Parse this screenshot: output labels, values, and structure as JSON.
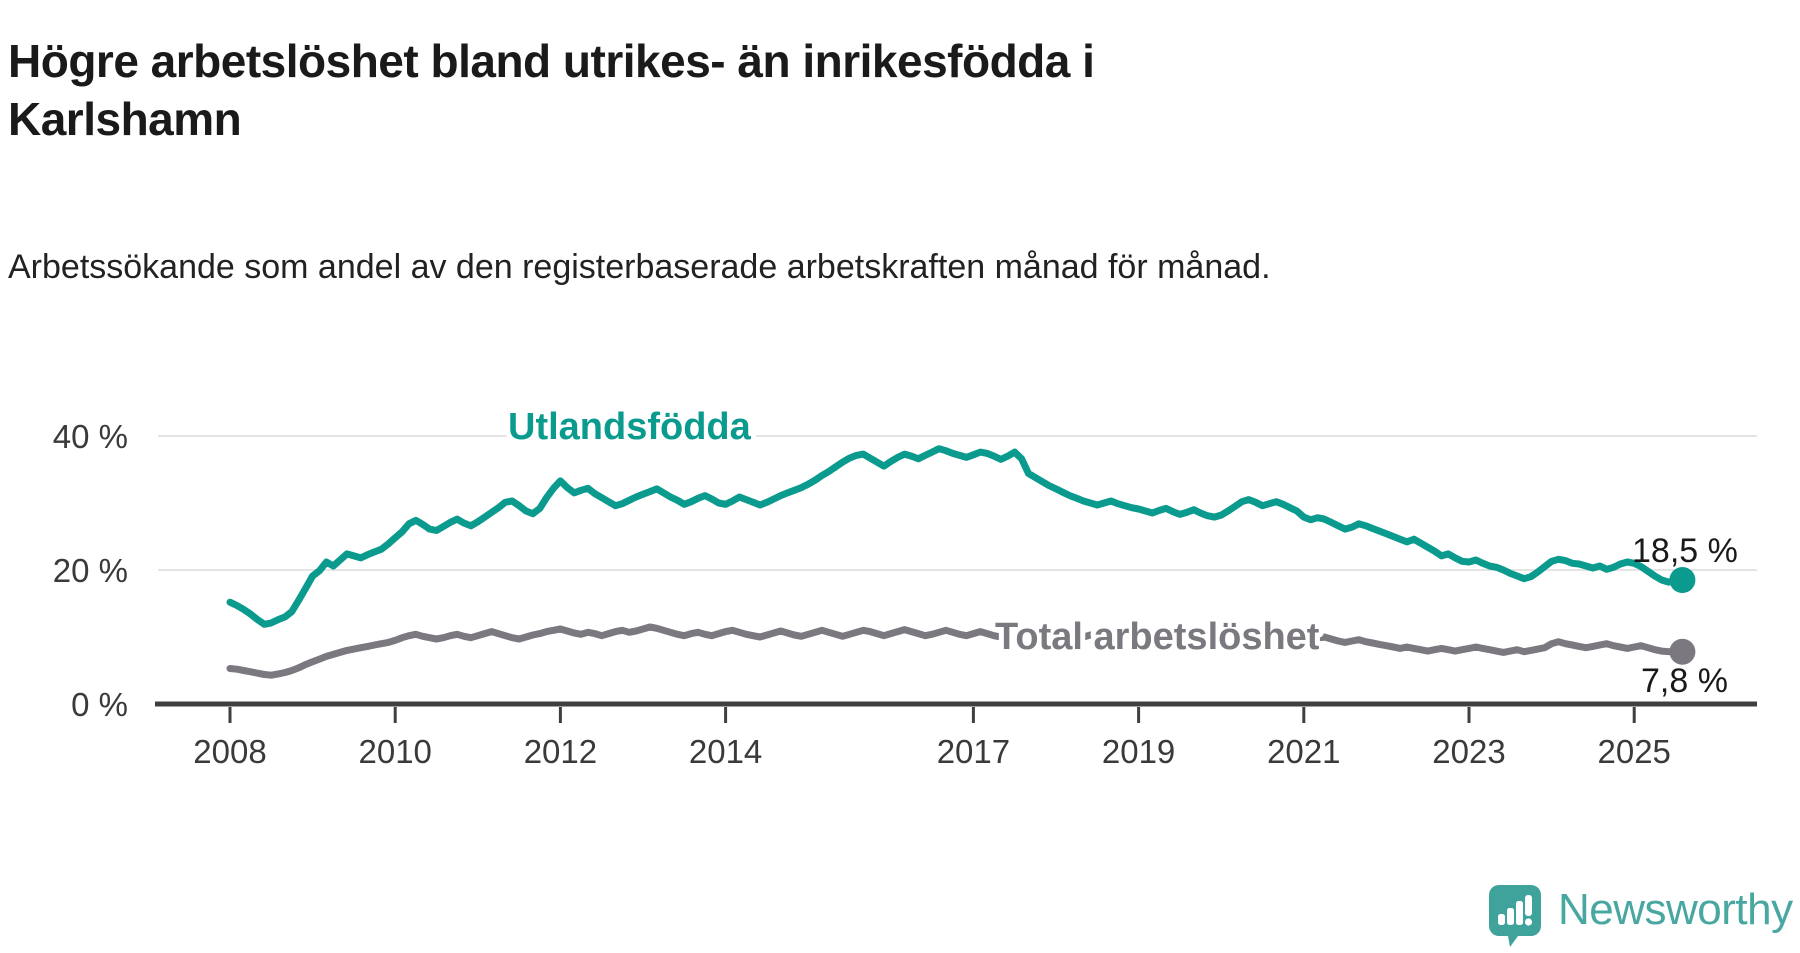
{
  "header": {
    "title": "Högre arbetslöshet bland utrikes- än inrikesfödda i Karlshamn",
    "subtitle": "Arbetssökande som andel av den registerbaserade arbetskraften månad för månad."
  },
  "colors": {
    "accent_teal": "#0b9b8e",
    "neutral_gray": "#7b7880",
    "grid": "#e4e4e4",
    "axis": "#3f3f3f",
    "axis_text": "#3a3a3a",
    "logo_teal": "#3fa39c",
    "brand_text_teal": "#48a7a0"
  },
  "chart_data": {
    "type": "line",
    "title": "Högre arbetslöshet bland utrikes- än inrikesfödda i Karlshamn",
    "subtitle": "Arbetssökande som andel av den registerbaserade arbetskraften månad för månad.",
    "x_unit": "month",
    "x_start": "2008-01",
    "x_end": "2025-08",
    "grid": "horizontal",
    "legend_position": "inline-labels",
    "ylim": [
      0,
      42
    ],
    "yticks": [
      {
        "value": 0,
        "label": "0 %"
      },
      {
        "value": 20,
        "label": "20 %"
      },
      {
        "value": 40,
        "label": "40 %"
      }
    ],
    "xticks": [
      {
        "year": 2008,
        "label": "2008"
      },
      {
        "year": 2010,
        "label": "2010"
      },
      {
        "year": 2012,
        "label": "2012"
      },
      {
        "year": 2014,
        "label": "2014"
      },
      {
        "year": 2017,
        "label": "2017"
      },
      {
        "year": 2019,
        "label": "2019"
      },
      {
        "year": 2021,
        "label": "2021"
      },
      {
        "year": 2023,
        "label": "2023"
      },
      {
        "year": 2025,
        "label": "2025"
      }
    ],
    "series": [
      {
        "name": "Utlandsfödda",
        "color": "#0b9b8e",
        "end_label": "18,5 %",
        "end_value": 18.5,
        "values": [
          15.2,
          14.7,
          14.1,
          13.4,
          12.6,
          11.9,
          12.1,
          12.6,
          13.0,
          13.8,
          15.5,
          17.3,
          19.1,
          19.9,
          21.2,
          20.6,
          21.5,
          22.4,
          22.1,
          21.8,
          22.3,
          22.7,
          23.1,
          23.9,
          24.8,
          25.7,
          26.9,
          27.4,
          26.8,
          26.1,
          25.9,
          26.5,
          27.1,
          27.6,
          27.0,
          26.6,
          27.2,
          27.9,
          28.6,
          29.3,
          30.1,
          30.3,
          29.6,
          28.8,
          28.4,
          29.2,
          30.8,
          32.2,
          33.3,
          32.3,
          31.5,
          31.9,
          32.2,
          31.4,
          30.8,
          30.2,
          29.6,
          29.9,
          30.4,
          30.9,
          31.3,
          31.7,
          32.1,
          31.5,
          30.9,
          30.4,
          29.8,
          30.2,
          30.7,
          31.1,
          30.6,
          30.0,
          29.8,
          30.3,
          30.9,
          30.5,
          30.1,
          29.7,
          30.1,
          30.6,
          31.1,
          31.5,
          31.9,
          32.3,
          32.8,
          33.4,
          34.1,
          34.7,
          35.4,
          36.1,
          36.7,
          37.1,
          37.3,
          36.7,
          36.1,
          35.5,
          36.2,
          36.8,
          37.3,
          37.0,
          36.6,
          37.1,
          37.6,
          38.1,
          37.8,
          37.4,
          37.1,
          36.8,
          37.2,
          37.6,
          37.4,
          37.0,
          36.5,
          37.0,
          37.6,
          36.6,
          34.4,
          33.8,
          33.2,
          32.6,
          32.1,
          31.6,
          31.1,
          30.7,
          30.3,
          30.0,
          29.7,
          30.0,
          30.3,
          29.9,
          29.6,
          29.3,
          29.1,
          28.8,
          28.5,
          28.9,
          29.2,
          28.7,
          28.3,
          28.6,
          29.0,
          28.5,
          28.1,
          27.9,
          28.2,
          28.8,
          29.5,
          30.2,
          30.5,
          30.1,
          29.6,
          29.9,
          30.2,
          29.8,
          29.3,
          28.8,
          27.9,
          27.5,
          27.8,
          27.6,
          27.1,
          26.6,
          26.1,
          26.4,
          26.9,
          26.6,
          26.2,
          25.8,
          25.4,
          25.0,
          24.6,
          24.2,
          24.6,
          24.0,
          23.4,
          22.8,
          22.1,
          22.4,
          21.8,
          21.3,
          21.2,
          21.5,
          21.0,
          20.6,
          20.4,
          20.0,
          19.5,
          19.1,
          18.7,
          19.0,
          19.7,
          20.5,
          21.3,
          21.6,
          21.4,
          21.0,
          20.9,
          20.6,
          20.3,
          20.6,
          20.1,
          20.4,
          20.9,
          21.2,
          21.0,
          20.5,
          19.8,
          19.1,
          18.5,
          18.2,
          18.4,
          18.5
        ]
      },
      {
        "name": "Total arbetslöshet",
        "color": "#7b7880",
        "end_label": "7,8 %",
        "end_value": 7.8,
        "values": [
          5.3,
          5.2,
          5.0,
          4.8,
          4.6,
          4.4,
          4.3,
          4.5,
          4.7,
          5.0,
          5.4,
          5.9,
          6.3,
          6.7,
          7.1,
          7.4,
          7.7,
          8.0,
          8.2,
          8.4,
          8.6,
          8.8,
          9.0,
          9.2,
          9.5,
          9.9,
          10.2,
          10.4,
          10.1,
          9.9,
          9.7,
          9.9,
          10.2,
          10.4,
          10.1,
          9.9,
          10.2,
          10.5,
          10.8,
          10.5,
          10.2,
          9.9,
          9.7,
          10.0,
          10.3,
          10.5,
          10.8,
          11.0,
          11.2,
          10.9,
          10.6,
          10.4,
          10.7,
          10.5,
          10.2,
          10.5,
          10.8,
          11.0,
          10.7,
          10.9,
          11.2,
          11.5,
          11.3,
          11.0,
          10.7,
          10.4,
          10.2,
          10.5,
          10.7,
          10.4,
          10.2,
          10.5,
          10.8,
          11.0,
          10.7,
          10.4,
          10.2,
          10.0,
          10.3,
          10.6,
          10.9,
          10.6,
          10.3,
          10.1,
          10.4,
          10.7,
          11.0,
          10.7,
          10.4,
          10.1,
          10.4,
          10.7,
          11.0,
          10.8,
          10.5,
          10.2,
          10.5,
          10.8,
          11.1,
          10.8,
          10.5,
          10.2,
          10.4,
          10.7,
          11.0,
          10.7,
          10.4,
          10.2,
          10.5,
          10.8,
          10.5,
          10.2,
          10.0,
          10.3,
          10.6,
          10.9,
          10.6,
          10.3,
          10.1,
          10.4,
          10.6,
          10.3,
          10.0,
          9.8,
          10.0,
          10.3,
          10.0,
          9.8,
          10.1,
          10.3,
          10.0,
          9.8,
          10.0,
          9.7,
          9.5,
          9.7,
          10.0,
          9.7,
          9.5,
          9.7,
          9.9,
          9.6,
          9.4,
          9.6,
          9.8,
          10.1,
          10.5,
          10.8,
          11.0,
          10.7,
          10.4,
          10.6,
          10.8,
          10.5,
          10.2,
          10.0,
          9.8,
          9.6,
          9.8,
          10.0,
          9.7,
          9.4,
          9.2,
          9.4,
          9.6,
          9.3,
          9.1,
          8.9,
          8.7,
          8.5,
          8.3,
          8.5,
          8.3,
          8.1,
          7.9,
          8.1,
          8.3,
          8.1,
          7.9,
          8.1,
          8.3,
          8.5,
          8.3,
          8.1,
          7.9,
          7.7,
          7.9,
          8.1,
          7.8,
          8.0,
          8.2,
          8.4,
          9.0,
          9.3,
          9.0,
          8.8,
          8.6,
          8.4,
          8.6,
          8.8,
          9.0,
          8.7,
          8.5,
          8.3,
          8.5,
          8.7,
          8.4,
          8.1,
          7.9,
          7.8,
          7.9,
          7.8
        ]
      }
    ]
  },
  "footer": {
    "brand": "Newsworthy"
  }
}
